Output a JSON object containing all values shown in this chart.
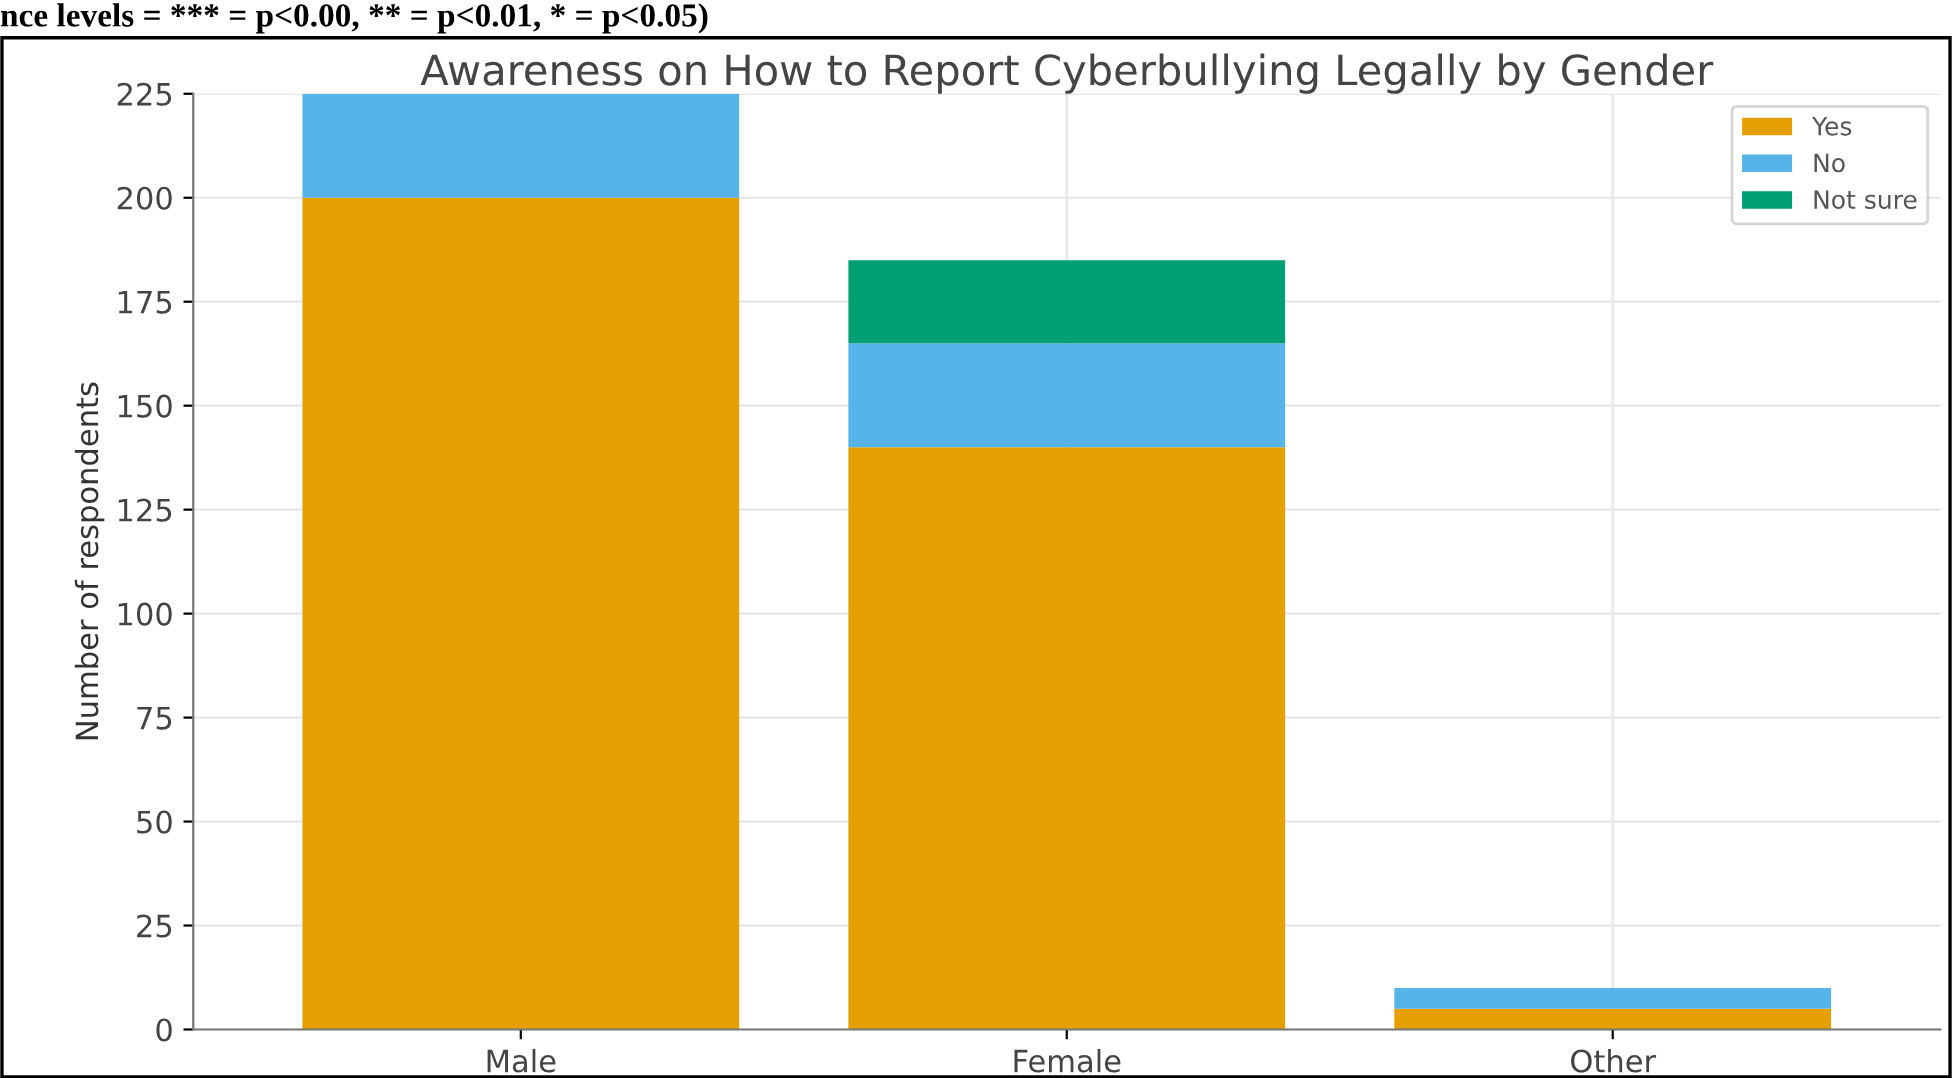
{
  "chart_data": {
    "type": "bar",
    "title": "Awareness on How to Report Cyberbullying Legally by Gender",
    "ylabel": "Number of respondents",
    "annotations": [
      "nce levels = *** = p<0.00, ** = p<0.01, * = p<0.05)"
    ],
    "categories": [
      "Male",
      "Female",
      "Other"
    ],
    "series": [
      {
        "name": "Yes",
        "color": "#e69f00",
        "values": [
          200,
          140,
          5
        ]
      },
      {
        "name": "No",
        "color": "#56b4e9",
        "values": [
          25,
          25,
          5
        ]
      },
      {
        "name": "Not sure",
        "color": "#009e73",
        "values": [
          0,
          20,
          0
        ]
      }
    ],
    "stacked": true,
    "ylim": [
      0,
      225
    ],
    "yticks": [
      0,
      25,
      50,
      75,
      100,
      125,
      150,
      175,
      200,
      225
    ],
    "grid": true,
    "legend": "top right"
  }
}
